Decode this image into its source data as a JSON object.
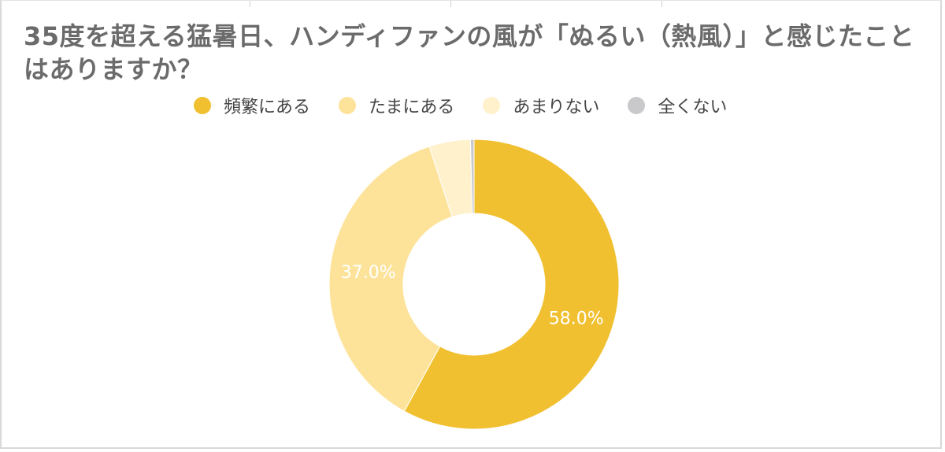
{
  "chart_data": {
    "type": "pie",
    "title": "35度を超える猛暑日、ハンディファンの風が「ぬるい（熱風）」と感じたことはありますか？",
    "legend_position": "top",
    "donut": true,
    "categories": [
      "頻繁にある",
      "たまにある",
      "あまりない",
      "全くない"
    ],
    "values": [
      58.0,
      37.0,
      4.6,
      0.4
    ],
    "colors": [
      "#f0c030",
      "#fde39a",
      "#fff1cc",
      "#c9c9cc"
    ],
    "data_labels": [
      "58.0%",
      "37.0%",
      "",
      ""
    ]
  }
}
